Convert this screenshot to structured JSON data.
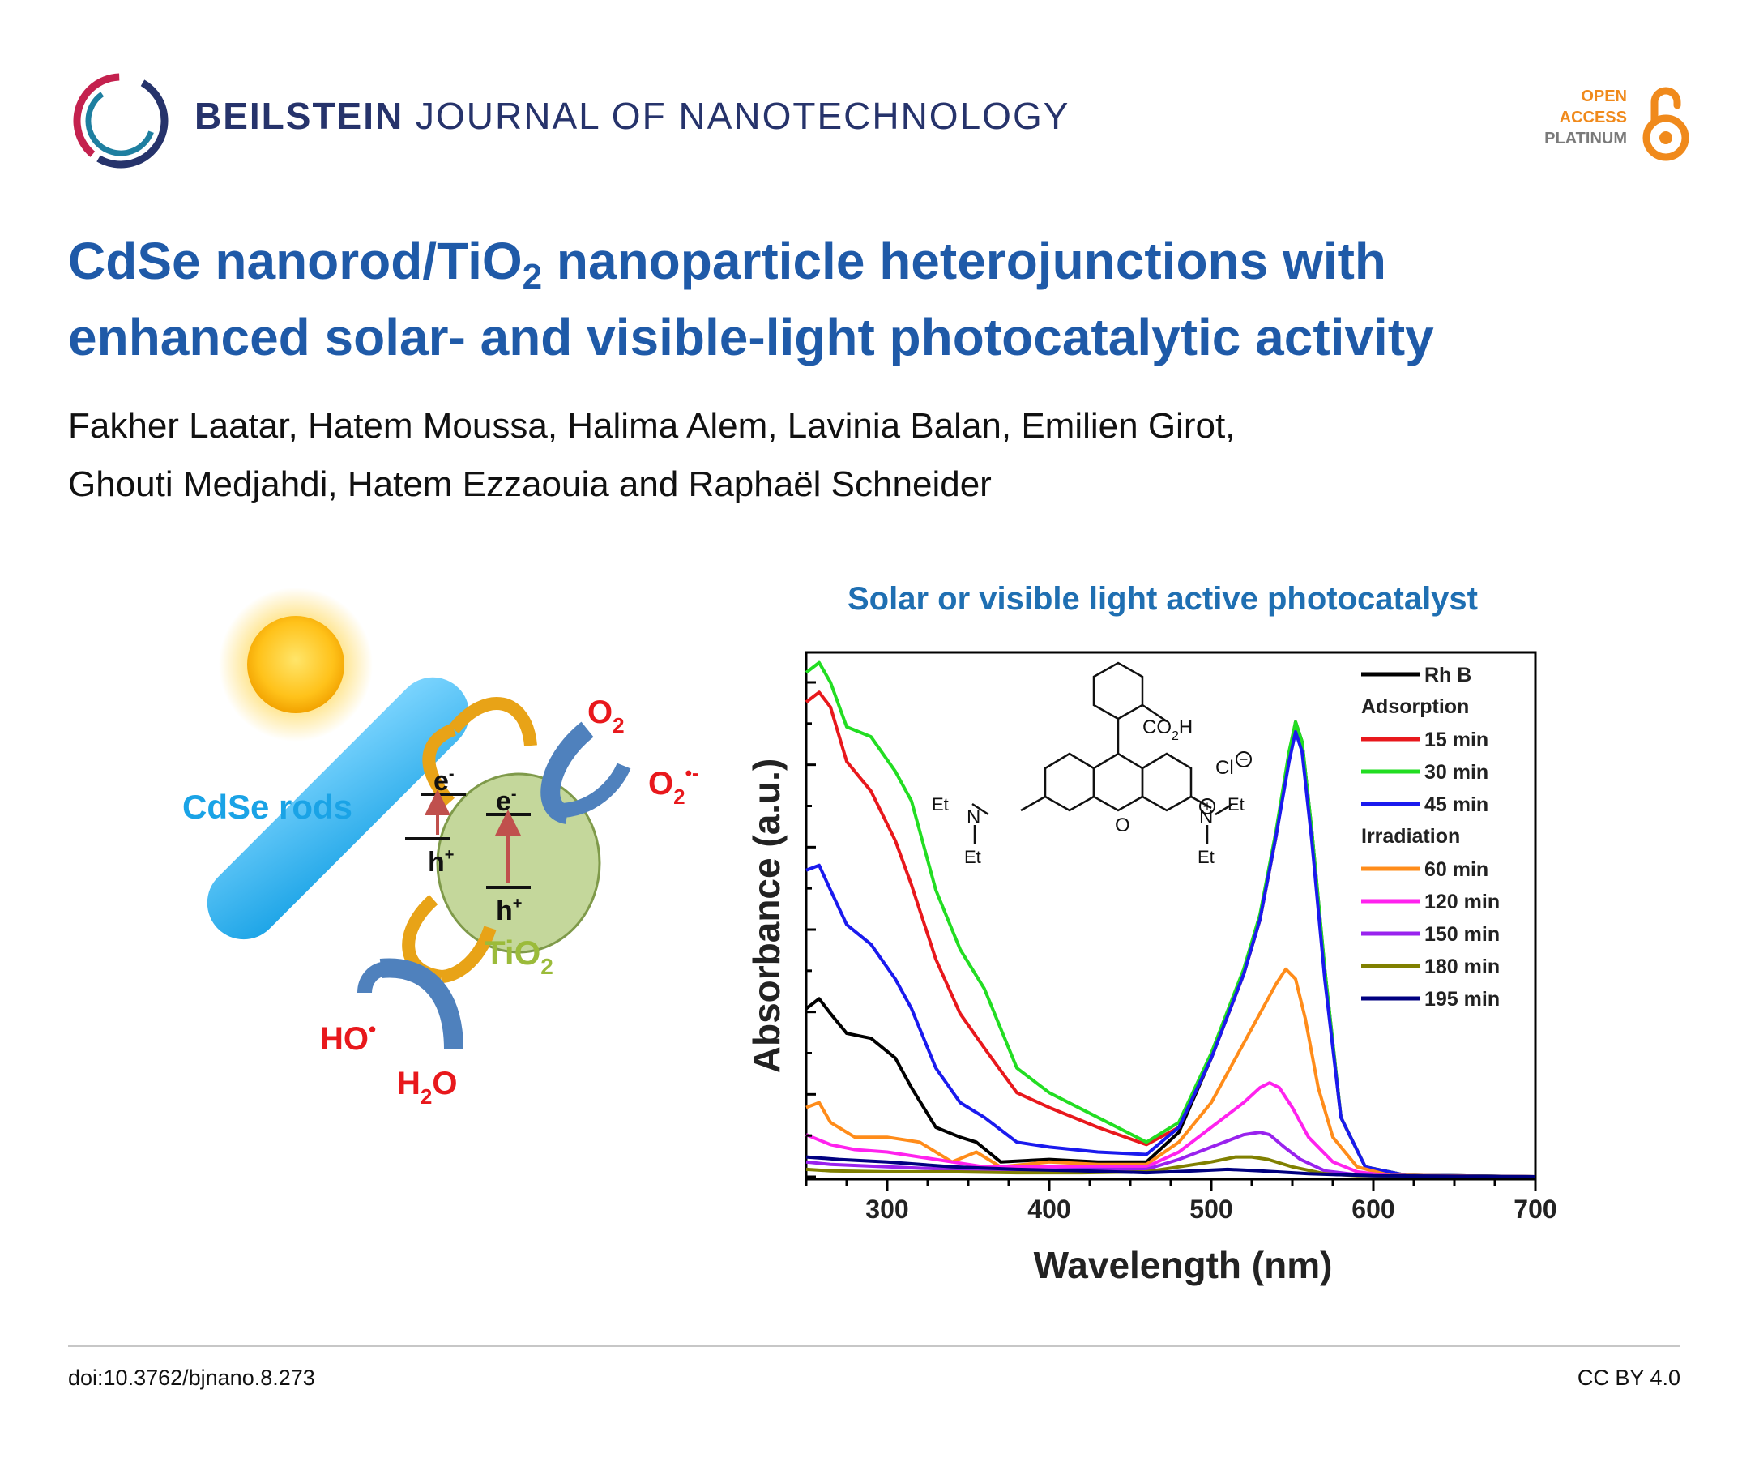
{
  "header": {
    "journal_bold": "BEILSTEIN",
    "journal_rest": "JOURNAL OF NANOTECHNOLOGY",
    "badge": {
      "line1": "OPEN",
      "line2": "ACCESS",
      "line3": "PLATINUM"
    }
  },
  "article": {
    "title_part1": "CdSe nanorod/TiO",
    "title_sub": "2",
    "title_part2": " nanoparticle heterojunctions with",
    "title_line2": "enhanced solar- and visible-light photocatalytic activity",
    "authors_line1": "Fakher Laatar, Hatem Moussa, Halima Alem, Lavinia Balan, Emilien Girot,",
    "authors_line2": "Ghouti Medjahdi, Hatem Ezzaouia and Raphaël Schneider"
  },
  "diagram": {
    "cdse_label": "CdSe rods",
    "tio2_label": "TiO",
    "tio2_sub": "2",
    "o2_label": "O",
    "o2_sub": "2",
    "superoxide_label": "O",
    "superoxide_sub": "2",
    "superoxide_sup": "•-",
    "ho_label": "HO",
    "ho_sup": "•",
    "h2o_label": "H",
    "h2o_sub": "2",
    "h2o_label2": "O",
    "electron": "e",
    "electron_sup": "-",
    "hole": "h",
    "hole_sup": "+"
  },
  "molecule": {
    "co2h": "CO",
    "co2h_sub": "2",
    "co2h_end": "H",
    "chloride": "Cl",
    "minus": "−",
    "plus": "+",
    "et": "Et",
    "n": "N",
    "o": "O"
  },
  "chart_data": {
    "type": "line",
    "title": "Solar or visible light active photocatalyst",
    "xlabel": "Wavelength (nm)",
    "ylabel": "Absorbance (a.u.)",
    "xlim": [
      250,
      700
    ],
    "ylim": [
      0,
      1
    ],
    "xticks": [
      300,
      400,
      500,
      600,
      700
    ],
    "legend_position": "top-right",
    "legend_headers": [
      {
        "label": "Adsorption",
        "before_index": 1
      },
      {
        "label": "Irradiation",
        "before_index": 4
      }
    ],
    "series": [
      {
        "name": "Rh B",
        "color": "#000000",
        "x": [
          250,
          258,
          265,
          275,
          290,
          305,
          315,
          330,
          345,
          355,
          370,
          400,
          430,
          460,
          480,
          500,
          520,
          530,
          540,
          548,
          552,
          556,
          562,
          570,
          580,
          595,
          620,
          700
        ],
        "y": [
          0.34,
          0.36,
          0.33,
          0.29,
          0.28,
          0.24,
          0.18,
          0.1,
          0.08,
          0.07,
          0.03,
          0.035,
          0.03,
          0.03,
          0.09,
          0.24,
          0.41,
          0.52,
          0.69,
          0.85,
          0.92,
          0.88,
          0.7,
          0.42,
          0.12,
          0.02,
          0.003,
          0.0
        ]
      },
      {
        "name": "15 min",
        "color": "#e8181c",
        "x": [
          250,
          258,
          265,
          275,
          290,
          305,
          315,
          330,
          345,
          360,
          380,
          400,
          430,
          460,
          480,
          500,
          520,
          530,
          540,
          548,
          552,
          556,
          562,
          570,
          580,
          595,
          620,
          700
        ],
        "y": [
          0.96,
          0.98,
          0.95,
          0.84,
          0.78,
          0.68,
          0.59,
          0.44,
          0.33,
          0.26,
          0.17,
          0.14,
          0.1,
          0.065,
          0.1,
          0.24,
          0.41,
          0.52,
          0.69,
          0.85,
          0.91,
          0.87,
          0.69,
          0.41,
          0.12,
          0.02,
          0.003,
          0.0
        ]
      },
      {
        "name": "30 min",
        "color": "#22dd22",
        "x": [
          250,
          258,
          265,
          275,
          290,
          305,
          315,
          330,
          345,
          360,
          380,
          400,
          430,
          460,
          480,
          500,
          520,
          530,
          540,
          548,
          552,
          556,
          562,
          570,
          580,
          595,
          620,
          700
        ],
        "y": [
          1.02,
          1.04,
          1.0,
          0.91,
          0.89,
          0.82,
          0.76,
          0.58,
          0.46,
          0.38,
          0.22,
          0.17,
          0.12,
          0.07,
          0.11,
          0.25,
          0.42,
          0.53,
          0.7,
          0.86,
          0.92,
          0.88,
          0.7,
          0.42,
          0.12,
          0.02,
          0.003,
          0.0
        ]
      },
      {
        "name": "45 min",
        "color": "#1a1aee",
        "x": [
          250,
          258,
          265,
          275,
          290,
          305,
          315,
          330,
          345,
          360,
          380,
          400,
          430,
          460,
          480,
          500,
          520,
          530,
          540,
          548,
          552,
          556,
          562,
          570,
          580,
          595,
          620,
          700
        ],
        "y": [
          0.62,
          0.63,
          0.58,
          0.51,
          0.47,
          0.4,
          0.34,
          0.22,
          0.15,
          0.12,
          0.07,
          0.06,
          0.05,
          0.045,
          0.1,
          0.24,
          0.41,
          0.52,
          0.69,
          0.84,
          0.9,
          0.86,
          0.68,
          0.4,
          0.12,
          0.02,
          0.003,
          0.0
        ]
      },
      {
        "name": "60 min",
        "color": "#ff8c1a",
        "x": [
          250,
          258,
          265,
          280,
          300,
          320,
          340,
          355,
          370,
          400,
          430,
          460,
          480,
          500,
          520,
          530,
          540,
          546,
          552,
          558,
          566,
          575,
          590,
          610,
          700
        ],
        "y": [
          0.14,
          0.15,
          0.11,
          0.08,
          0.08,
          0.07,
          0.03,
          0.05,
          0.02,
          0.03,
          0.025,
          0.025,
          0.07,
          0.15,
          0.27,
          0.33,
          0.39,
          0.42,
          0.4,
          0.32,
          0.18,
          0.08,
          0.02,
          0.003,
          0.0
        ]
      },
      {
        "name": "120 min",
        "color": "#ff22ee",
        "x": [
          250,
          265,
          280,
          300,
          320,
          340,
          360,
          400,
          430,
          460,
          480,
          500,
          520,
          530,
          536,
          542,
          550,
          560,
          575,
          590,
          610,
          700
        ],
        "y": [
          0.085,
          0.065,
          0.055,
          0.05,
          0.04,
          0.03,
          0.02,
          0.02,
          0.02,
          0.02,
          0.05,
          0.1,
          0.15,
          0.18,
          0.19,
          0.18,
          0.14,
          0.08,
          0.03,
          0.01,
          0.002,
          0.0
        ]
      },
      {
        "name": "150 min",
        "color": "#9922ee",
        "x": [
          250,
          265,
          300,
          340,
          380,
          420,
          460,
          480,
          500,
          520,
          530,
          536,
          545,
          555,
          570,
          590,
          610,
          700
        ],
        "y": [
          0.03,
          0.025,
          0.02,
          0.015,
          0.012,
          0.015,
          0.015,
          0.035,
          0.06,
          0.085,
          0.09,
          0.085,
          0.06,
          0.035,
          0.012,
          0.004,
          0.001,
          0.0
        ]
      },
      {
        "name": "180 min",
        "color": "#808000",
        "x": [
          250,
          265,
          300,
          340,
          380,
          420,
          460,
          480,
          500,
          515,
          525,
          535,
          550,
          570,
          590,
          700
        ],
        "y": [
          0.015,
          0.012,
          0.01,
          0.01,
          0.008,
          0.008,
          0.01,
          0.02,
          0.03,
          0.04,
          0.04,
          0.035,
          0.02,
          0.006,
          0.002,
          0.0
        ]
      },
      {
        "name": "195 min",
        "color": "#000080",
        "x": [
          250,
          270,
          300,
          340,
          380,
          420,
          460,
          490,
          510,
          530,
          560,
          600,
          700
        ],
        "y": [
          0.04,
          0.035,
          0.03,
          0.02,
          0.015,
          0.012,
          0.008,
          0.012,
          0.015,
          0.012,
          0.006,
          0.002,
          0.0
        ]
      }
    ]
  },
  "footer": {
    "doi": "doi:10.3762/bjnano.8.273",
    "license": "CC BY 4.0"
  }
}
